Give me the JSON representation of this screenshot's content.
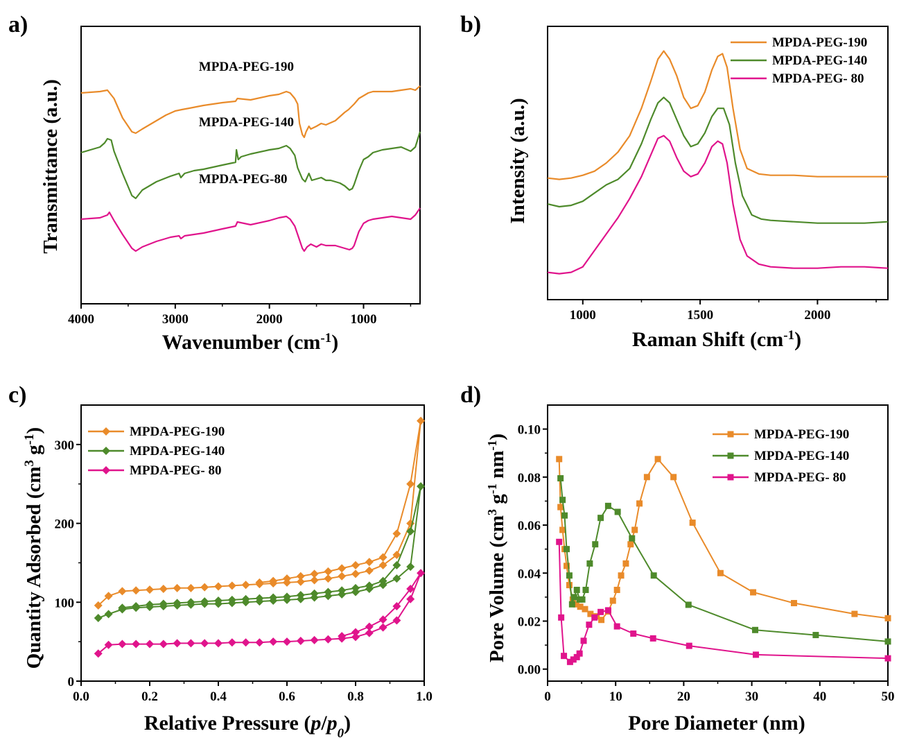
{
  "colors": {
    "orange": "#E98B2A",
    "green": "#4E8A2B",
    "magenta": "#E0148C"
  },
  "chart_data": [
    {
      "id": "a",
      "type": "line",
      "panel_label": "a)",
      "xlabel_main": "Wavenumber (cm",
      "xlabel_sup": "-1",
      "xlabel_end": ")",
      "ylabel": "Transmittance (a.u.)",
      "xlim": [
        4000,
        400
      ],
      "x_reversed": true,
      "xticks": [
        4000,
        3000,
        2000,
        1000
      ],
      "yticks": [],
      "ylim": [
        0,
        1
      ],
      "series_labels": [
        {
          "text": "MPDA-PEG-190",
          "x": 2750,
          "y": 0.84
        },
        {
          "text": "MPDA-PEG-140",
          "x": 2750,
          "y": 0.64
        },
        {
          "text": "MPDA-PEG-80",
          "x": 2750,
          "y": 0.435
        }
      ],
      "series": [
        {
          "name": "MPDA-PEG-190",
          "color": "orange",
          "x": [
            4000,
            3800,
            3720,
            3650,
            3560,
            3460,
            3420,
            3350,
            3200,
            3100,
            3000,
            2930,
            2850,
            2700,
            2500,
            2360,
            2340,
            2200,
            2000,
            1900,
            1820,
            1780,
            1730,
            1700,
            1680,
            1650,
            1630,
            1610,
            1580,
            1560,
            1500,
            1450,
            1400,
            1300,
            1200,
            1160,
            1100,
            1050,
            1000,
            950,
            900,
            800,
            700,
            600,
            500,
            450,
            400
          ],
          "y": [
            0.76,
            0.765,
            0.77,
            0.74,
            0.67,
            0.62,
            0.615,
            0.63,
            0.66,
            0.68,
            0.695,
            0.7,
            0.705,
            0.715,
            0.725,
            0.73,
            0.74,
            0.735,
            0.75,
            0.755,
            0.765,
            0.76,
            0.74,
            0.72,
            0.65,
            0.61,
            0.6,
            0.62,
            0.64,
            0.63,
            0.64,
            0.65,
            0.645,
            0.66,
            0.69,
            0.7,
            0.72,
            0.74,
            0.75,
            0.76,
            0.765,
            0.765,
            0.765,
            0.77,
            0.775,
            0.77,
            0.785
          ]
        },
        {
          "name": "MPDA-PEG-140",
          "color": "green",
          "x": [
            4000,
            3900,
            3800,
            3750,
            3720,
            3680,
            3650,
            3560,
            3460,
            3420,
            3350,
            3200,
            3050,
            2960,
            2940,
            2900,
            2800,
            2700,
            2500,
            2360,
            2350,
            2330,
            2300,
            2200,
            2000,
            1900,
            1820,
            1780,
            1730,
            1700,
            1650,
            1620,
            1600,
            1580,
            1550,
            1500,
            1450,
            1400,
            1350,
            1300,
            1250,
            1200,
            1150,
            1120,
            1100,
            1050,
            1000,
            950,
            900,
            800,
            700,
            600,
            500,
            450,
            400
          ],
          "y": [
            0.545,
            0.555,
            0.565,
            0.58,
            0.595,
            0.59,
            0.55,
            0.47,
            0.39,
            0.38,
            0.41,
            0.44,
            0.46,
            0.47,
            0.455,
            0.47,
            0.48,
            0.485,
            0.5,
            0.51,
            0.555,
            0.52,
            0.53,
            0.54,
            0.555,
            0.56,
            0.57,
            0.56,
            0.535,
            0.49,
            0.45,
            0.44,
            0.455,
            0.47,
            0.445,
            0.45,
            0.455,
            0.445,
            0.445,
            0.44,
            0.435,
            0.425,
            0.41,
            0.415,
            0.43,
            0.48,
            0.52,
            0.53,
            0.545,
            0.555,
            0.56,
            0.565,
            0.55,
            0.565,
            0.62
          ]
        },
        {
          "name": "MPDA-PEG-80",
          "color": "magenta",
          "x": [
            4000,
            3800,
            3720,
            3700,
            3650,
            3560,
            3460,
            3420,
            3350,
            3200,
            3050,
            2960,
            2940,
            2900,
            2700,
            2500,
            2360,
            2340,
            2200,
            2000,
            1900,
            1820,
            1780,
            1730,
            1700,
            1650,
            1630,
            1600,
            1560,
            1500,
            1450,
            1400,
            1300,
            1250,
            1200,
            1150,
            1120,
            1100,
            1050,
            1000,
            950,
            900,
            800,
            700,
            600,
            500,
            450,
            400
          ],
          "y": [
            0.305,
            0.31,
            0.32,
            0.33,
            0.3,
            0.25,
            0.2,
            0.19,
            0.205,
            0.225,
            0.24,
            0.245,
            0.235,
            0.245,
            0.255,
            0.27,
            0.28,
            0.295,
            0.285,
            0.3,
            0.31,
            0.315,
            0.305,
            0.28,
            0.25,
            0.2,
            0.19,
            0.205,
            0.215,
            0.205,
            0.215,
            0.21,
            0.21,
            0.205,
            0.2,
            0.195,
            0.2,
            0.21,
            0.26,
            0.29,
            0.3,
            0.305,
            0.31,
            0.315,
            0.31,
            0.305,
            0.32,
            0.345
          ]
        }
      ]
    },
    {
      "id": "b",
      "type": "line",
      "panel_label": "b)",
      "xlabel_main": "Raman Shift (cm",
      "xlabel_sup": "-1",
      "xlabel_end": ")",
      "ylabel": "Intensity (a.u.)",
      "xlim": [
        850,
        2300
      ],
      "xticks": [
        1000,
        1500,
        2000
      ],
      "yticks": [],
      "ylim": [
        0,
        1
      ],
      "legend_position": "top-right",
      "series": [
        {
          "name": "MPDA-PEG-190",
          "color": "orange",
          "x": [
            850,
            900,
            950,
            1000,
            1050,
            1100,
            1150,
            1200,
            1250,
            1290,
            1320,
            1345,
            1370,
            1400,
            1430,
            1460,
            1490,
            1520,
            1550,
            1575,
            1595,
            1615,
            1640,
            1670,
            1700,
            1750,
            1800,
            1900,
            2000,
            2100,
            2200,
            2300
          ],
          "y": [
            0.445,
            0.44,
            0.445,
            0.455,
            0.47,
            0.5,
            0.54,
            0.6,
            0.7,
            0.8,
            0.88,
            0.91,
            0.88,
            0.82,
            0.74,
            0.7,
            0.71,
            0.76,
            0.84,
            0.89,
            0.9,
            0.85,
            0.7,
            0.55,
            0.48,
            0.46,
            0.455,
            0.455,
            0.45,
            0.45,
            0.45,
            0.45
          ]
        },
        {
          "name": "MPDA-PEG-140",
          "color": "green",
          "x": [
            850,
            900,
            950,
            1000,
            1050,
            1100,
            1150,
            1200,
            1250,
            1290,
            1320,
            1345,
            1370,
            1400,
            1430,
            1460,
            1490,
            1520,
            1550,
            1575,
            1600,
            1625,
            1650,
            1680,
            1720,
            1760,
            1800,
            1900,
            2000,
            2100,
            2200,
            2300
          ],
          "y": [
            0.35,
            0.34,
            0.345,
            0.36,
            0.39,
            0.42,
            0.44,
            0.48,
            0.57,
            0.66,
            0.72,
            0.74,
            0.72,
            0.66,
            0.6,
            0.56,
            0.57,
            0.61,
            0.67,
            0.7,
            0.7,
            0.64,
            0.5,
            0.38,
            0.31,
            0.295,
            0.29,
            0.285,
            0.28,
            0.28,
            0.28,
            0.285
          ]
        },
        {
          "name": "MPDA-PEG- 80",
          "color": "magenta",
          "x": [
            850,
            900,
            950,
            1000,
            1050,
            1100,
            1150,
            1200,
            1250,
            1290,
            1320,
            1345,
            1370,
            1400,
            1430,
            1460,
            1490,
            1520,
            1550,
            1575,
            1595,
            1615,
            1640,
            1670,
            1700,
            1750,
            1800,
            1900,
            2000,
            2100,
            2200,
            2300
          ],
          "y": [
            0.1,
            0.095,
            0.1,
            0.12,
            0.18,
            0.24,
            0.3,
            0.37,
            0.45,
            0.53,
            0.59,
            0.6,
            0.58,
            0.52,
            0.47,
            0.45,
            0.46,
            0.5,
            0.56,
            0.58,
            0.57,
            0.5,
            0.35,
            0.22,
            0.16,
            0.13,
            0.12,
            0.115,
            0.115,
            0.12,
            0.12,
            0.115
          ]
        }
      ]
    },
    {
      "id": "c",
      "type": "line",
      "panel_label": "c)",
      "xlabel_main": "Relative Pressure (",
      "xlabel_italic1": "p",
      "xlabel_slash": "/",
      "xlabel_italic2": "p",
      "xlabel_sub": "0",
      "xlabel_end": ")",
      "ylabel_main": "Quantity Adsorbed (cm",
      "ylabel_sup1": "3",
      "ylabel_mid": " g",
      "ylabel_sup2": "-1",
      "ylabel_end": ")",
      "xlim": [
        0,
        1.0
      ],
      "ylim": [
        0,
        350
      ],
      "xticks": [
        "0.0",
        "0.2",
        "0.4",
        "0.6",
        "0.8",
        "1.0"
      ],
      "yticks": [
        "0",
        "100",
        "200",
        "300"
      ],
      "legend_position": "top-left",
      "marker": "diamond",
      "series": [
        {
          "name": "MPDA-PEG-190",
          "color": "orange",
          "x": [
            0.05,
            0.08,
            0.12,
            0.16,
            0.2,
            0.24,
            0.28,
            0.32,
            0.36,
            0.4,
            0.44,
            0.48,
            0.52,
            0.56,
            0.6,
            0.64,
            0.68,
            0.72,
            0.76,
            0.8,
            0.84,
            0.88,
            0.92,
            0.96,
            0.99,
            0.96,
            0.92,
            0.88,
            0.84,
            0.8,
            0.76,
            0.72,
            0.68,
            0.64,
            0.6,
            0.56,
            0.52
          ],
          "y": [
            96,
            108,
            114,
            115,
            116,
            117,
            118,
            118,
            119,
            120,
            121,
            122,
            123,
            124,
            125,
            126,
            128,
            130,
            133,
            136,
            140,
            147,
            160,
            200,
            330,
            250,
            187,
            157,
            151,
            147,
            143,
            139,
            136,
            133,
            130,
            127,
            125
          ]
        },
        {
          "name": "MPDA-PEG-140",
          "color": "green",
          "x": [
            0.05,
            0.08,
            0.12,
            0.16,
            0.2,
            0.24,
            0.28,
            0.32,
            0.36,
            0.4,
            0.44,
            0.48,
            0.52,
            0.56,
            0.6,
            0.64,
            0.68,
            0.72,
            0.76,
            0.8,
            0.84,
            0.88,
            0.92,
            0.96,
            0.99,
            0.96,
            0.92,
            0.88,
            0.84,
            0.8,
            0.76,
            0.72,
            0.68,
            0.64,
            0.6,
            0.56,
            0.52,
            0.48,
            0.44,
            0.4,
            0.36,
            0.32,
            0.28,
            0.24,
            0.2,
            0.16,
            0.12
          ],
          "y": [
            80,
            85,
            91,
            93,
            94,
            95,
            96,
            97,
            98,
            98,
            99,
            100,
            101,
            102,
            103,
            104,
            106,
            108,
            110,
            113,
            117,
            122,
            130,
            145,
            247,
            190,
            147,
            127,
            121,
            118,
            115,
            113,
            111,
            109,
            107,
            106,
            105,
            104,
            103,
            102,
            101,
            100,
            99,
            98,
            97,
            95,
            93
          ]
        },
        {
          "name": "MPDA-PEG- 80",
          "color": "magenta",
          "x": [
            0.05,
            0.08,
            0.12,
            0.16,
            0.2,
            0.24,
            0.28,
            0.32,
            0.36,
            0.4,
            0.44,
            0.48,
            0.52,
            0.56,
            0.6,
            0.64,
            0.68,
            0.72,
            0.76,
            0.8,
            0.84,
            0.88,
            0.92,
            0.96,
            0.99,
            0.96,
            0.92,
            0.88,
            0.84,
            0.8,
            0.76
          ],
          "y": [
            35,
            46,
            47,
            47,
            47,
            47,
            48,
            48,
            48,
            48,
            49,
            49,
            49,
            50,
            50,
            51,
            52,
            53,
            54,
            56,
            61,
            68,
            77,
            104,
            137,
            117,
            95,
            78,
            69,
            62,
            57
          ]
        }
      ]
    },
    {
      "id": "d",
      "type": "line",
      "panel_label": "d)",
      "xlabel_main": "Pore Diameter (nm)",
      "ylabel_main": "Pore Volume (cm",
      "ylabel_sup1": "3",
      "ylabel_mid": " g",
      "ylabel_sup2": "-1",
      "ylabel_mid2": " nm",
      "ylabel_sup3": "-1",
      "ylabel_end": ")",
      "xlim": [
        0,
        50
      ],
      "ylim": [
        -0.005,
        0.11
      ],
      "xticks": [
        "0",
        "10",
        "20",
        "30",
        "40",
        "50"
      ],
      "yticks": [
        "0.00",
        "0.02",
        "0.04",
        "0.06",
        "0.08",
        "0.10"
      ],
      "legend_position": "top-right",
      "marker": "square",
      "series": [
        {
          "name": "MPDA-PEG-190",
          "color": "orange",
          "x": [
            1.7,
            1.9,
            2.2,
            2.5,
            2.8,
            3.2,
            3.7,
            4.2,
            4.8,
            5.5,
            6.3,
            7.2,
            7.9,
            8.9,
            9.6,
            10.2,
            10.8,
            11.5,
            12.2,
            12.8,
            13.5,
            14.6,
            16.2,
            18.5,
            21.3,
            25.4,
            30.2,
            36.2,
            45.1,
            50
          ],
          "y": [
            0.0875,
            0.0675,
            0.058,
            0.05,
            0.043,
            0.035,
            0.029,
            0.027,
            0.026,
            0.025,
            0.023,
            0.022,
            0.0205,
            0.024,
            0.0285,
            0.033,
            0.039,
            0.044,
            0.052,
            0.058,
            0.069,
            0.08,
            0.0875,
            0.08,
            0.061,
            0.04,
            0.032,
            0.0275,
            0.023,
            0.0212
          ]
        },
        {
          "name": "MPDA-PEG-140",
          "color": "green",
          "x": [
            1.9,
            2.2,
            2.5,
            2.8,
            3.2,
            3.6,
            3.9,
            4.3,
            4.7,
            5.1,
            5.6,
            6.2,
            7.0,
            7.8,
            8.9,
            10.3,
            12.4,
            15.6,
            20.7,
            30.5,
            39.4,
            50
          ],
          "y": [
            0.0795,
            0.0705,
            0.064,
            0.05,
            0.039,
            0.027,
            0.03,
            0.033,
            0.029,
            0.029,
            0.033,
            0.044,
            0.052,
            0.063,
            0.068,
            0.0655,
            0.0545,
            0.039,
            0.0268,
            0.0163,
            0.0142,
            0.0115
          ]
        },
        {
          "name": "MPDA-PEG- 80",
          "color": "magenta",
          "x": [
            1.7,
            2.0,
            2.4,
            3.3,
            3.8,
            4.3,
            4.7,
            5.3,
            6.1,
            6.9,
            7.8,
            8.9,
            10.2,
            12.6,
            15.5,
            20.8,
            30.6,
            50
          ],
          "y": [
            0.053,
            0.0215,
            0.0055,
            0.003,
            0.004,
            0.005,
            0.0065,
            0.0118,
            0.0185,
            0.0215,
            0.0238,
            0.0245,
            0.0178,
            0.0148,
            0.0128,
            0.0097,
            0.006,
            0.0045
          ]
        }
      ]
    }
  ]
}
